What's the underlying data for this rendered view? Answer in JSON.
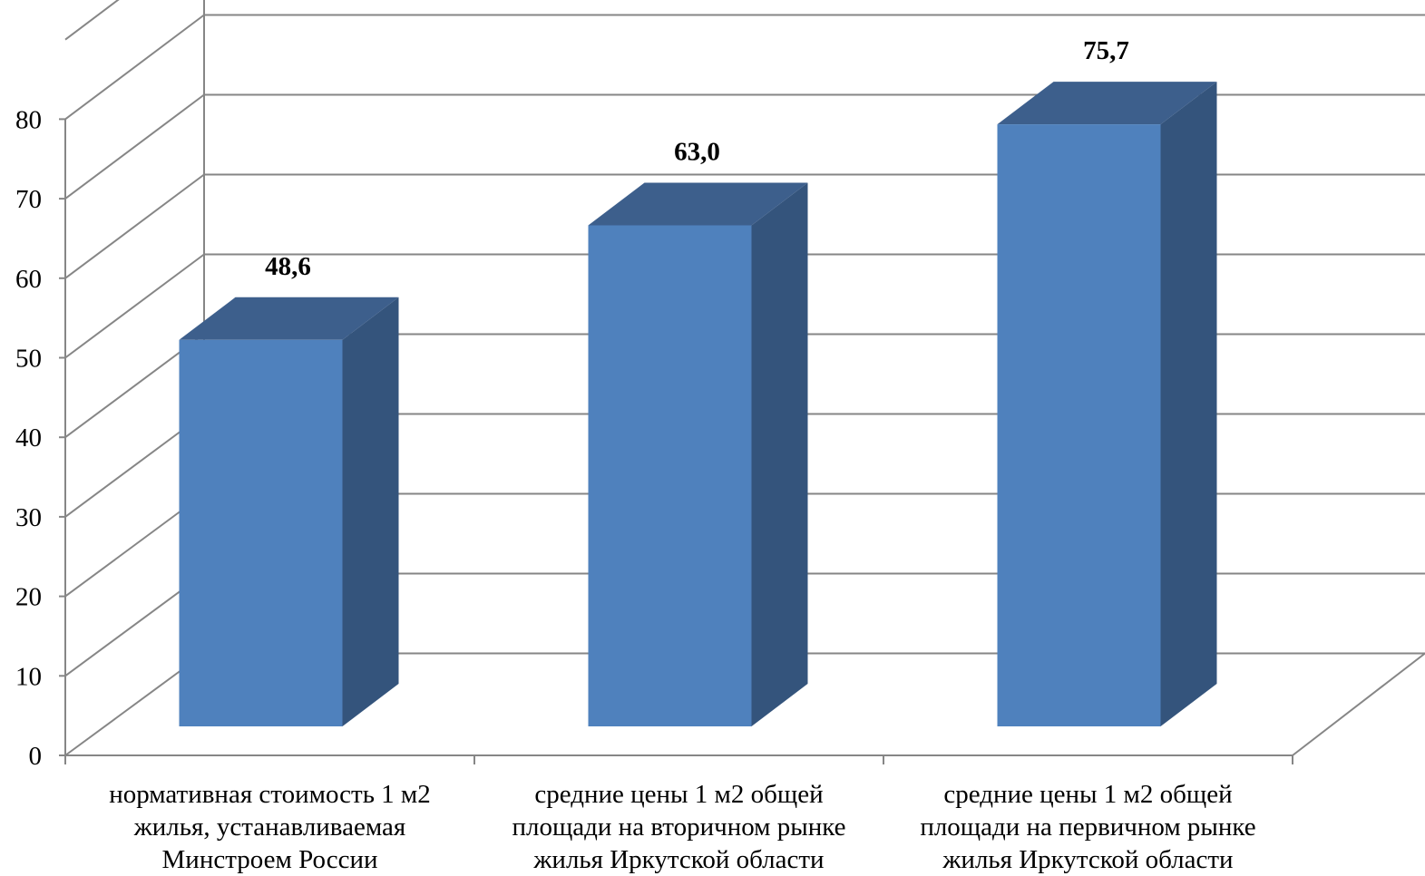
{
  "chart_data": {
    "type": "bar",
    "style": "3d-column",
    "categories": [
      [
        "нормативная стоимость 1 м2",
        "жилья, устанавливаемая",
        "Минстроем России"
      ],
      [
        "средние цены 1 м2 общей",
        "площади на вторичном рынке",
        "жилья Иркутской области"
      ],
      [
        "средние цены 1 м2 общей",
        "площади на первичном рынке",
        "жилья Иркутской области"
      ]
    ],
    "values": [
      48.6,
      63.0,
      75.7
    ],
    "value_labels": [
      "48,6",
      "63,0",
      "75,7"
    ],
    "ylim": [
      0,
      80
    ],
    "yticks": [
      0,
      10,
      20,
      30,
      40,
      50,
      60,
      70,
      80
    ],
    "grid": true,
    "colors": {
      "bar_front": "#4F81BD",
      "bar_top": "#3D5F8C",
      "bar_side": "#34547C",
      "grid": "#868686"
    }
  }
}
